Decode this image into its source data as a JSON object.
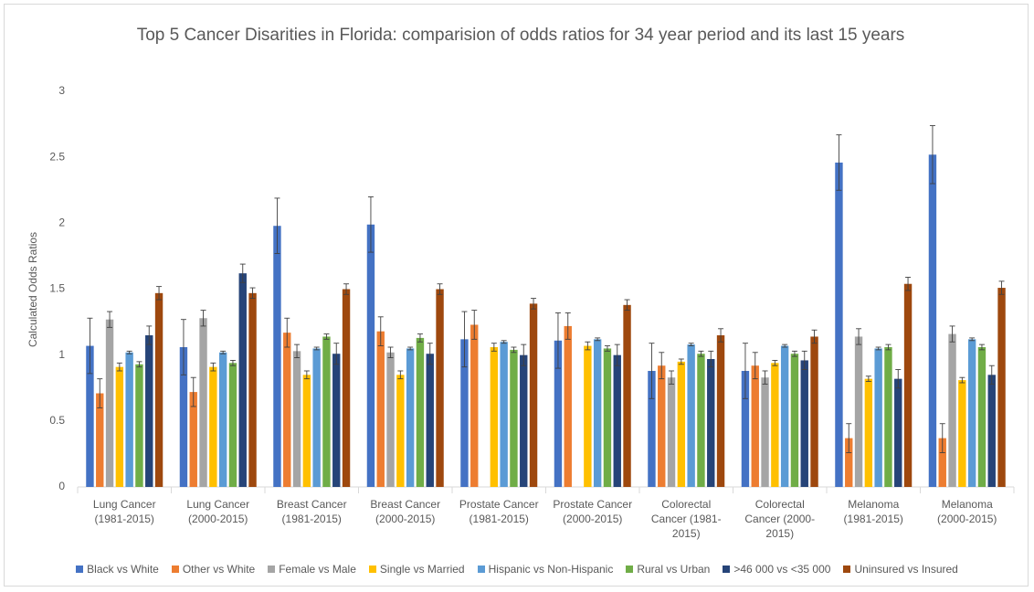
{
  "chart_data": {
    "type": "bar",
    "title": "Top 5 Cancer Disarities in Florida: comparision of odds ratios for 34 year period and its last 15 years",
    "y_label": "Calculated Odds Ratios",
    "categories": [
      [
        "Lung Cancer",
        "(1981-2015)"
      ],
      [
        "Lung Cancer",
        "(2000-2015)"
      ],
      [
        "Breast Cancer",
        "(1981-2015)"
      ],
      [
        "Breast Cancer",
        "(2000-2015)"
      ],
      [
        "Prostate Cancer",
        "(1981-2015)"
      ],
      [
        "Prostate Cancer",
        "(2000-2015)"
      ],
      [
        "Colorectal",
        "Cancer (1981-",
        "2015)"
      ],
      [
        "Colorectal",
        "Cancer (2000-",
        "2015)"
      ],
      [
        "Melanoma",
        "(1981-2015)"
      ],
      [
        "Melanoma",
        "(2000-2015)"
      ]
    ],
    "series": [
      {
        "name": "Black vs White",
        "color": "#4472c4",
        "values": [
          1.07,
          1.06,
          1.98,
          1.99,
          1.12,
          1.11,
          0.88,
          0.88,
          2.46,
          2.52
        ],
        "errors": [
          0.21,
          0.21,
          0.21,
          0.21,
          0.21,
          0.21,
          0.21,
          0.21,
          0.21,
          0.22
        ]
      },
      {
        "name": "Other vs White",
        "color": "#ed7d31",
        "values": [
          0.71,
          0.72,
          1.17,
          1.18,
          1.23,
          1.22,
          0.92,
          0.92,
          0.37,
          0.37
        ],
        "errors": [
          0.11,
          0.11,
          0.11,
          0.11,
          0.11,
          0.1,
          0.1,
          0.1,
          0.11,
          0.11
        ]
      },
      {
        "name": "Female vs Male",
        "color": "#a5a5a5",
        "values": [
          1.27,
          1.28,
          1.03,
          1.02,
          null,
          null,
          0.83,
          0.83,
          1.14,
          1.16
        ],
        "errors": [
          0.06,
          0.06,
          0.05,
          0.04,
          null,
          null,
          0.05,
          0.05,
          0.06,
          0.06
        ]
      },
      {
        "name": "Single vs Married",
        "color": "#ffc000",
        "values": [
          0.91,
          0.91,
          0.85,
          0.85,
          1.06,
          1.07,
          0.95,
          0.94,
          0.82,
          0.81
        ],
        "errors": [
          0.03,
          0.03,
          0.03,
          0.03,
          0.03,
          0.03,
          0.02,
          0.02,
          0.02,
          0.02
        ]
      },
      {
        "name": "Hispanic vs Non-Hispanic",
        "color": "#5b9bd5",
        "values": [
          1.02,
          1.02,
          1.05,
          1.05,
          1.1,
          1.12,
          1.08,
          1.07,
          1.05,
          1.12
        ],
        "errors": [
          0.01,
          0.01,
          0.01,
          0.01,
          0.01,
          0.01,
          0.01,
          0.01,
          0.01,
          0.01
        ]
      },
      {
        "name": "Rural vs Urban",
        "color": "#70ad47",
        "values": [
          0.93,
          0.94,
          1.14,
          1.13,
          1.04,
          1.05,
          1.01,
          1.01,
          1.06,
          1.06
        ],
        "errors": [
          0.02,
          0.02,
          0.02,
          0.03,
          0.02,
          0.02,
          0.02,
          0.02,
          0.02,
          0.02
        ]
      },
      {
        "name": ">46 000 vs <35 000",
        "color": "#264478",
        "values": [
          1.15,
          1.62,
          1.01,
          1.01,
          1.0,
          1.0,
          0.97,
          0.96,
          0.82,
          0.85
        ],
        "errors": [
          0.07,
          0.07,
          0.08,
          0.08,
          0.08,
          0.08,
          0.06,
          0.07,
          0.07,
          0.07
        ]
      },
      {
        "name": "Uninsured vs Insured",
        "color": "#9e480e",
        "values": [
          1.47,
          1.47,
          1.5,
          1.5,
          1.39,
          1.38,
          1.15,
          1.14,
          1.54,
          1.51
        ],
        "errors": [
          0.05,
          0.04,
          0.04,
          0.04,
          0.04,
          0.04,
          0.05,
          0.05,
          0.05,
          0.05
        ]
      }
    ],
    "ylim": [
      0,
      3
    ],
    "yticks": [
      0,
      0.5,
      1,
      1.5,
      2,
      2.5,
      3
    ],
    "grid": false
  }
}
